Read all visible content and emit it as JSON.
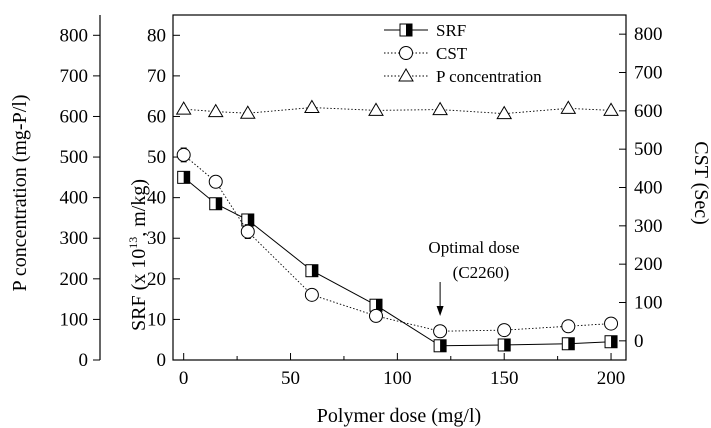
{
  "chart_data": {
    "type": "line",
    "x": [
      0,
      15,
      30,
      60,
      90,
      120,
      150,
      180,
      200
    ],
    "xlabel": "Polymer dose (mg/l)",
    "xlim": [
      -5,
      207
    ],
    "xticks": [
      0,
      50,
      100,
      150,
      200
    ],
    "ylabel_left": "P concentration (mg-P/l)",
    "ylim_left": [
      0,
      850
    ],
    "yticks_left": [
      0,
      100,
      200,
      300,
      400,
      500,
      600,
      700,
      800
    ],
    "ylabel_srf_main": "SRF (x 10",
    "ylabel_srf_exp": "13",
    "ylabel_srf_tail": ", m/kg)",
    "ylim_srf": [
      0,
      85
    ],
    "yticks_srf": [
      0,
      10,
      20,
      30,
      40,
      50,
      60,
      70,
      80
    ],
    "ylabel_right": "CST (Sec)",
    "ylim_cst": [
      -50,
      850
    ],
    "yticks_cst": [
      0,
      100,
      200,
      300,
      400,
      500,
      600,
      700,
      800
    ],
    "series": [
      {
        "name": "SRF",
        "axis": "srf",
        "marker": "half-square",
        "line": "solid",
        "values": [
          45,
          38.5,
          34.5,
          22,
          13.5,
          3.5,
          3.7,
          4,
          4.5
        ],
        "err": [
          0.5,
          0.5,
          0.5,
          0.5,
          0.5,
          0.5,
          0.5,
          0.5,
          0.5
        ]
      },
      {
        "name": "CST",
        "axis": "cst",
        "marker": "circle",
        "line": "dotted",
        "values": [
          485,
          415,
          285,
          120,
          65,
          25,
          28,
          38,
          45
        ],
        "err": [
          18,
          10,
          18,
          10,
          10,
          10,
          10,
          10,
          10
        ]
      },
      {
        "name": "P concentration",
        "axis": "left",
        "marker": "triangle",
        "line": "dotted",
        "values": [
          618,
          612,
          608,
          622,
          615,
          617,
          607,
          620,
          615
        ],
        "err": [
          0,
          0,
          0,
          0,
          0,
          0,
          0,
          0,
          0
        ]
      }
    ],
    "annotation": {
      "line1": "Optimal dose",
      "line2": "(C2260)",
      "x": 120
    },
    "legend_position": "top-right",
    "grid": false
  }
}
